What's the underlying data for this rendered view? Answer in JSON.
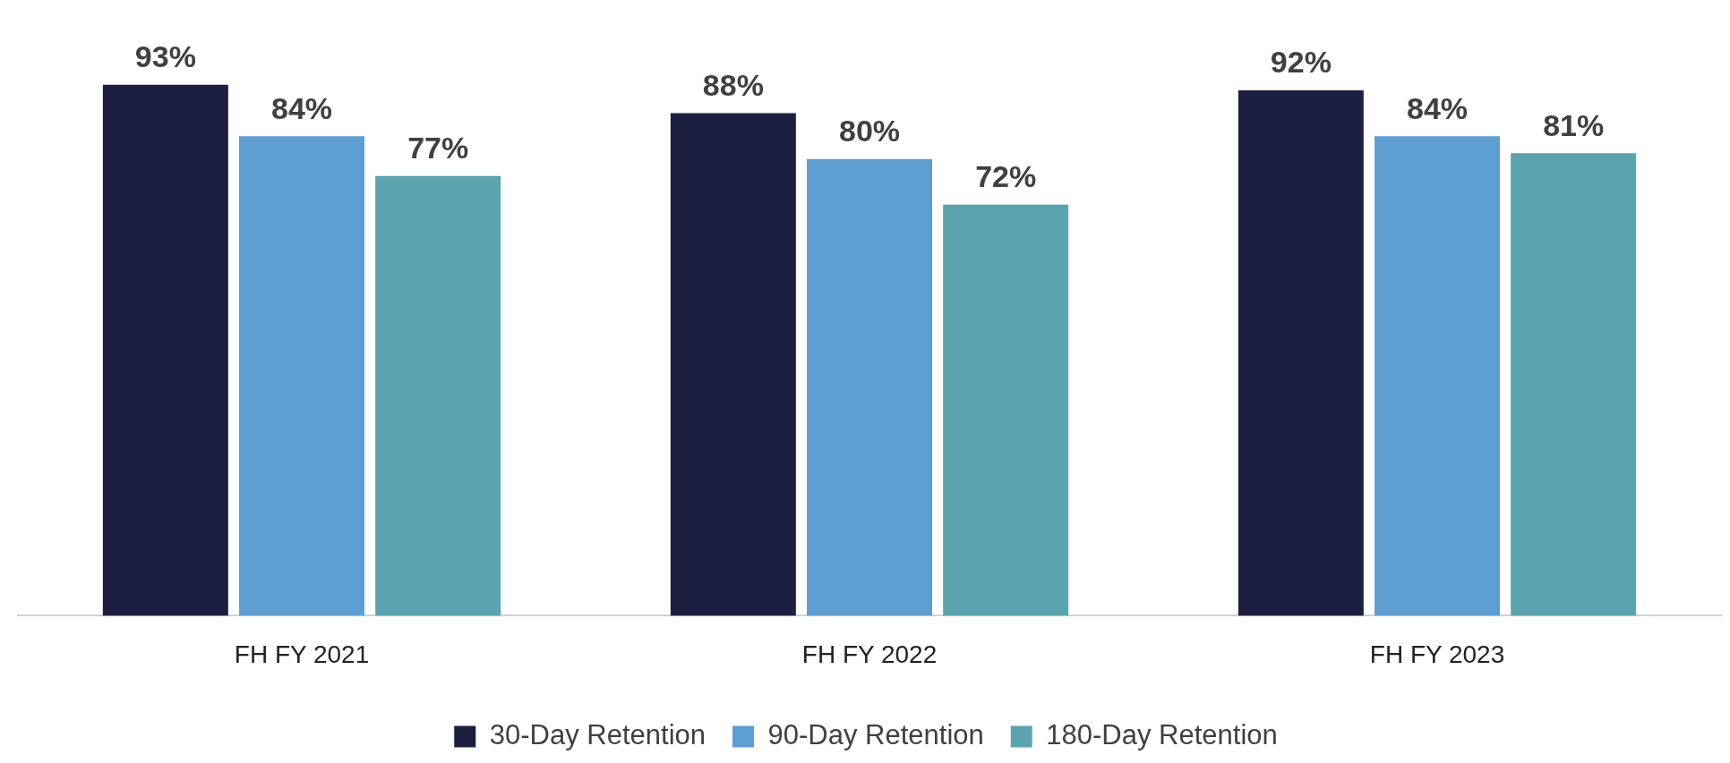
{
  "chart_data": {
    "type": "bar",
    "categories": [
      "FH FY 2021",
      "FH FY 2022",
      "FH FY 2023"
    ],
    "series": [
      {
        "name": "30-Day Retention",
        "color": "#1c1f3f",
        "values": [
          93,
          88,
          92
        ],
        "value_labels": [
          "93%",
          "88%",
          "92%"
        ]
      },
      {
        "name": "90-Day Retention",
        "color": "#5f9ed1",
        "values": [
          84,
          80,
          84
        ],
        "value_labels": [
          "84%",
          "80%",
          "84%"
        ]
      },
      {
        "name": "180-Day Retention",
        "color": "#5ba3ad",
        "values": [
          77,
          72,
          81
        ],
        "value_labels": [
          "77%",
          "72%",
          "81%"
        ]
      }
    ],
    "tick_labels": "x",
    "grid": false,
    "legend": "bottom"
  }
}
